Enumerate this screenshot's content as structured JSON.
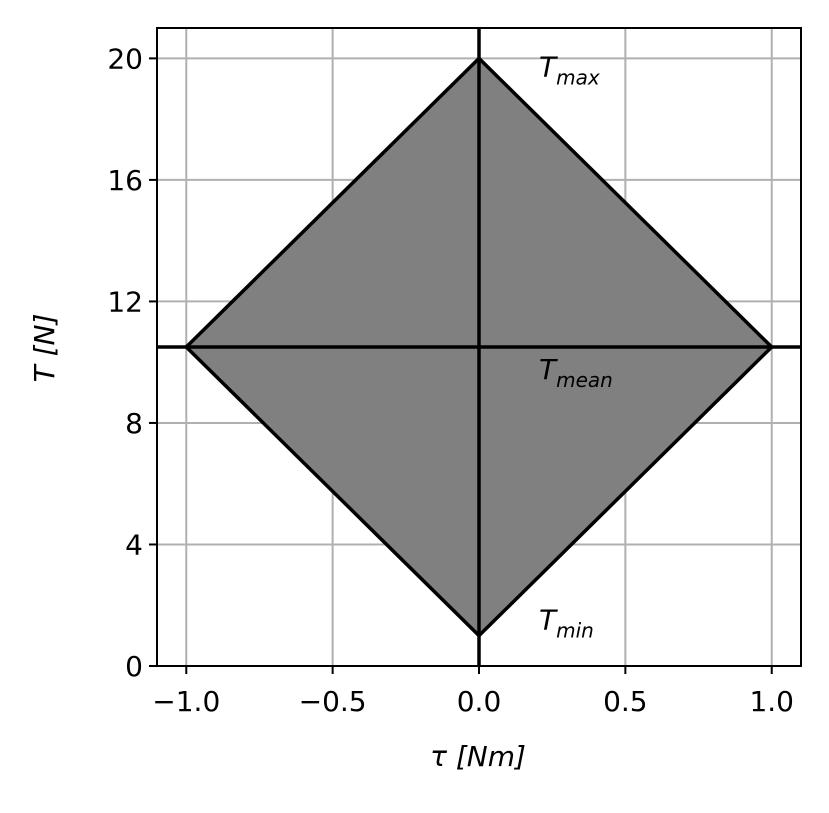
{
  "chart_data": {
    "type": "polygon",
    "xlabel": "τ [Nm]",
    "ylabel": "T [N]",
    "polygon": {
      "x": [
        0,
        1,
        0,
        -1
      ],
      "y": [
        20,
        10.5,
        1,
        10.5
      ],
      "color": "#808080",
      "edgecolor": "#000000"
    },
    "hline": 10.5,
    "vline": 0,
    "annotations": [
      {
        "text": "T",
        "sub": "max"
      },
      {
        "text": "T",
        "sub": "mean"
      },
      {
        "text": "T",
        "sub": "min"
      }
    ],
    "xlim": [
      -1.1,
      1.1
    ],
    "ylim": [
      0,
      21
    ],
    "xticks": [
      {
        "value": -1,
        "label": "−1.0"
      },
      {
        "value": -0.5,
        "label": "−0.5"
      },
      {
        "value": 0,
        "label": "0.0"
      },
      {
        "value": 0.5,
        "label": "0.5"
      },
      {
        "value": 1,
        "label": "1.0"
      }
    ],
    "yticks": [
      0,
      4,
      8,
      12,
      16,
      20
    ],
    "grid": true
  }
}
